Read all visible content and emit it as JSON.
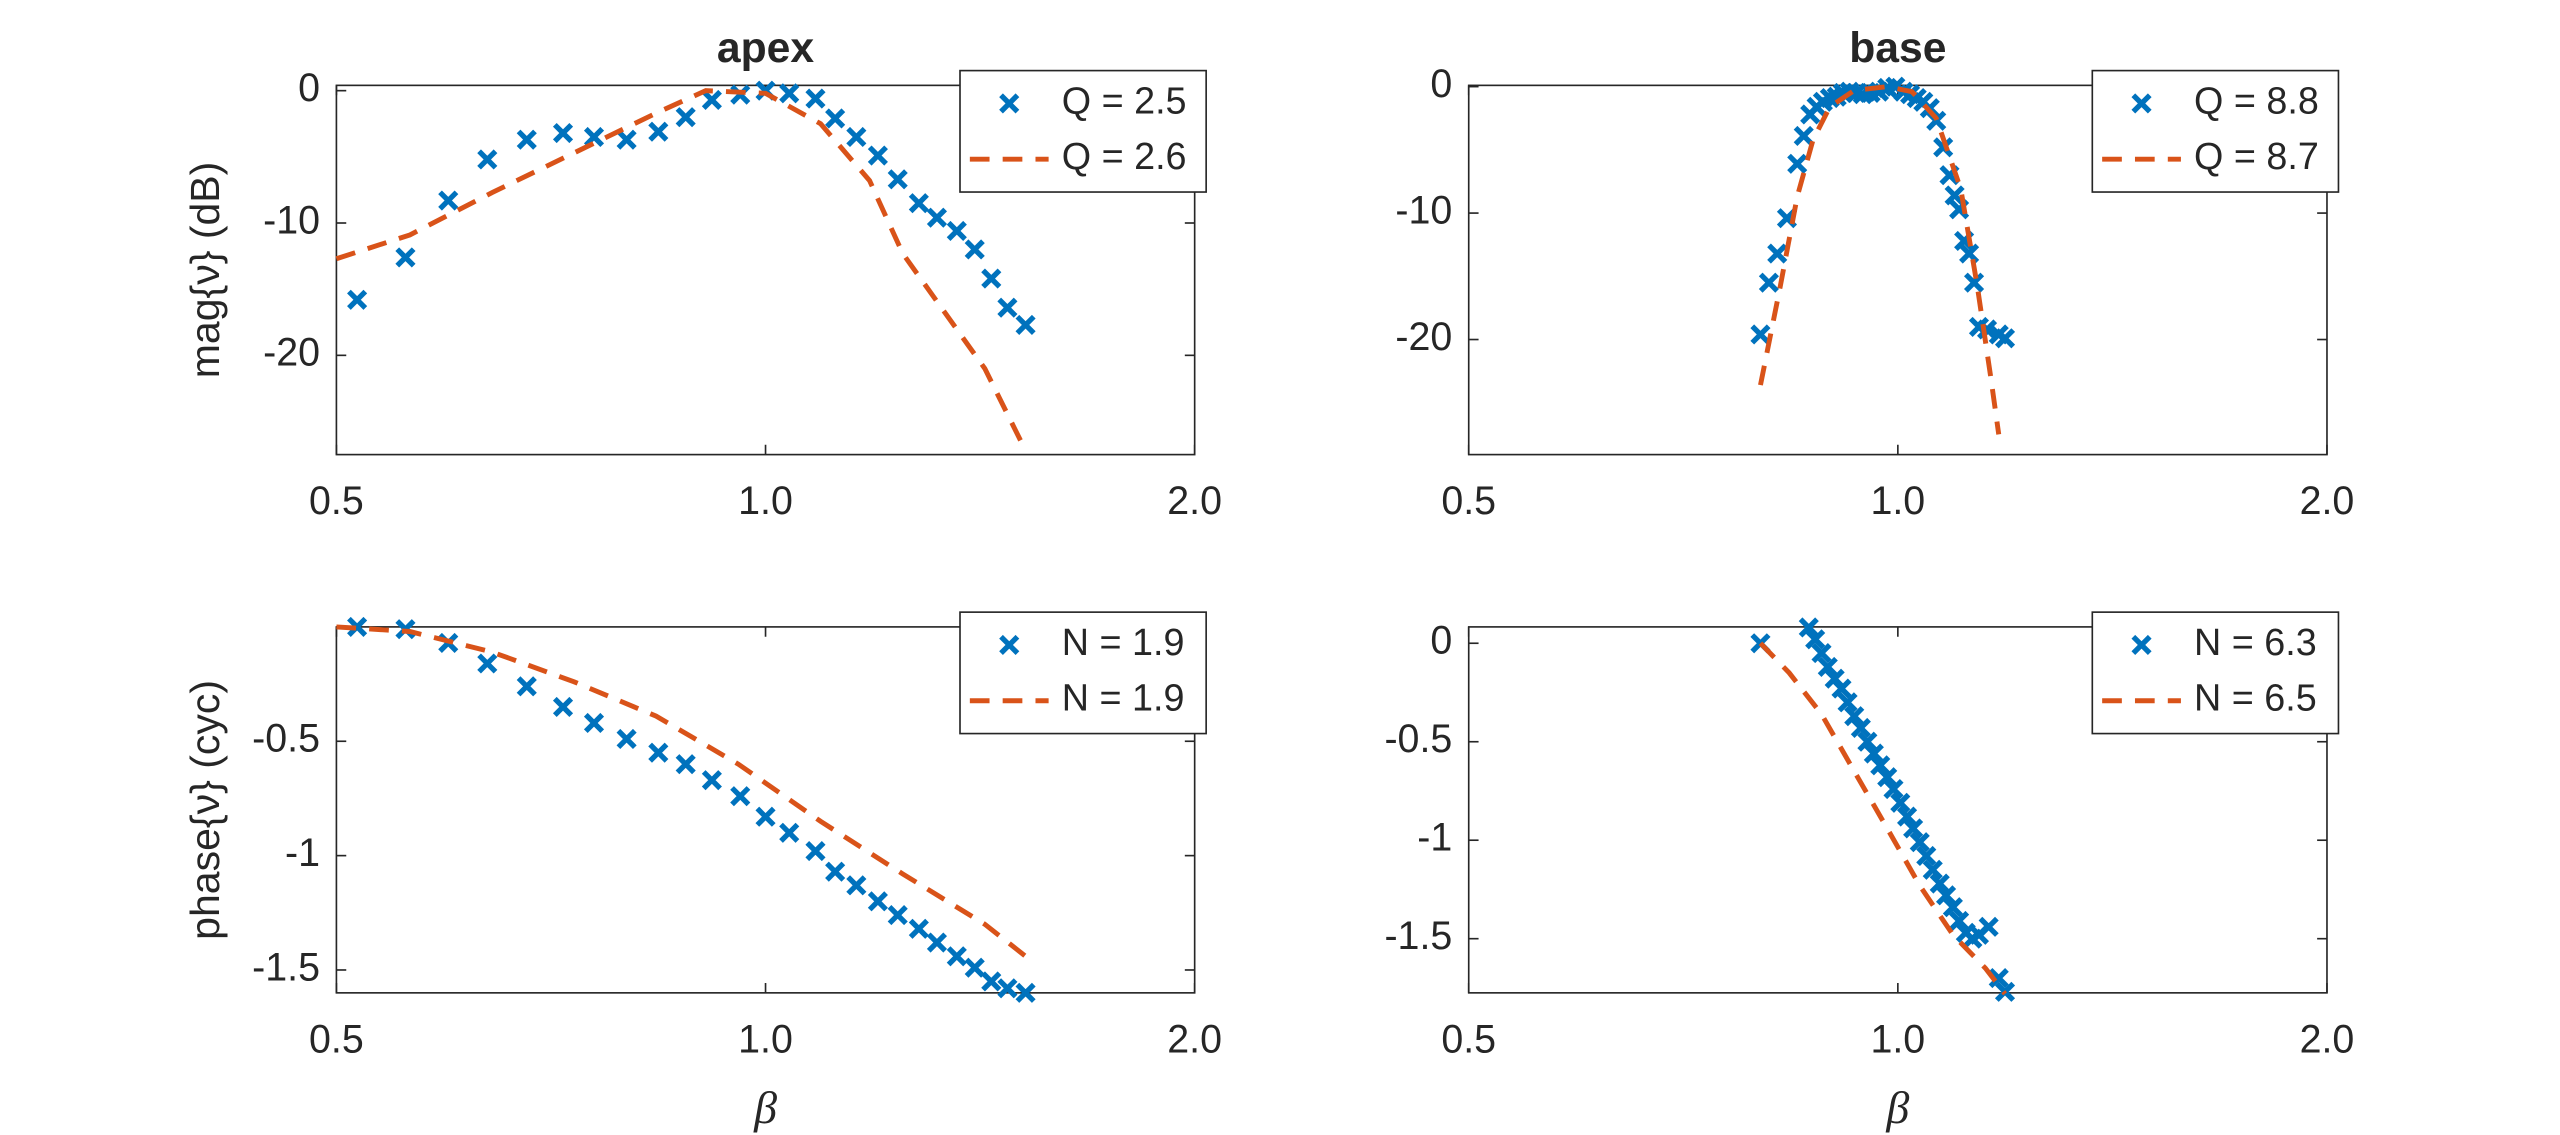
{
  "chart_data": [
    {
      "type": "line",
      "title": "apex",
      "ylabel": "mag{ν} (dB)",
      "xscale": "log",
      "legend": "northeast",
      "xlim": [
        0.5,
        2
      ],
      "xticks": [
        0.5,
        {
          "value": 1,
          "label": "1.0"
        },
        {
          "value": 2,
          "label": "2.0"
        }
      ],
      "ylim": [
        -27.5,
        0.4
      ],
      "yticks": [
        -20,
        -10,
        0
      ],
      "series": [
        {
          "name": "Q = 2.5",
          "color": "#0072BD",
          "marker": "x",
          "x": [
            0.517,
            0.559,
            0.599,
            0.638,
            0.68,
            0.721,
            0.758,
            0.799,
            0.841,
            0.879,
            0.917,
            0.96,
            1.0,
            1.039,
            1.084,
            1.119,
            1.158,
            1.199,
            1.238,
            1.281,
            1.319,
            1.362,
            1.402,
            1.44,
            1.478,
            1.522
          ],
          "values": [
            -15.8,
            -12.6,
            -8.3,
            -5.2,
            -3.7,
            -3.2,
            -3.5,
            -3.7,
            -3.1,
            -2.0,
            -0.7,
            -0.3,
            0,
            -0.2,
            -0.6,
            -2.1,
            -3.5,
            -4.9,
            -6.7,
            -8.5,
            -9.6,
            -10.6,
            -12.0,
            -14.2,
            -16.4,
            -17.7
          ]
        },
        {
          "name": "Q = 2.6",
          "color": "#D95319",
          "linestyle": "--",
          "x": [
            0.5,
            0.563,
            0.643,
            0.734,
            0.838,
            0.908,
            1.0,
            1.093,
            1.183,
            1.248,
            1.425,
            1.522
          ],
          "values": [
            -12.7,
            -10.9,
            -7.7,
            -4.7,
            -1.7,
            0,
            -0.2,
            -2.5,
            -6.8,
            -12.3,
            -21.0,
            -27.2
          ]
        }
      ]
    },
    {
      "type": "line",
      "title": "base",
      "xscale": "log",
      "legend": "northeast",
      "xlim": [
        0.5,
        2
      ],
      "xticks": [
        0.5,
        {
          "value": 1,
          "label": "1.0"
        },
        {
          "value": 2,
          "label": "2.0"
        }
      ],
      "ylim": [
        -29.1,
        0.1
      ],
      "yticks": [
        -20,
        -10,
        0
      ],
      "series": [
        {
          "name": "Q = 8.8",
          "color": "#0072BD",
          "marker": "x",
          "x": [
            0.801,
            0.812,
            0.823,
            0.836,
            0.85,
            0.859,
            0.868,
            0.877,
            0.886,
            0.896,
            0.906,
            0.915,
            0.925,
            0.935,
            0.945,
            0.957,
            0.97,
            0.983,
            0.996,
            1.009,
            1.02,
            1.031,
            1.042,
            1.053,
            1.064,
            1.076,
            1.087,
            1.096,
            1.104,
            1.113,
            1.122,
            1.131,
            1.14,
            1.155,
            1.177,
            1.189
          ],
          "values": [
            -19.6,
            -15.5,
            -13.2,
            -10.4,
            -6.1,
            -3.9,
            -2.2,
            -1.6,
            -1.2,
            -0.9,
            -0.8,
            -0.5,
            -0.4,
            -0.5,
            -0.6,
            -0.5,
            -0.4,
            -0.1,
            0,
            -0.4,
            -0.6,
            -0.9,
            -1.2,
            -1.7,
            -2.7,
            -4.8,
            -7.0,
            -8.6,
            -9.7,
            -12.2,
            -13.2,
            -15.5,
            -19.0,
            -19.2,
            -19.6,
            -19.9
          ]
        },
        {
          "name": "Q = 8.7",
          "color": "#D95319",
          "linestyle": "--",
          "x": [
            0.801,
            0.827,
            0.85,
            0.872,
            0.896,
            0.932,
            0.983,
            1.023,
            1.064,
            1.107,
            1.137,
            1.162,
            1.177
          ],
          "values": [
            -23.6,
            -15.8,
            -8.7,
            -4.2,
            -1.6,
            -0.3,
            0,
            -0.4,
            -2.5,
            -8.1,
            -15.8,
            -23.0,
            -27.5
          ]
        }
      ]
    },
    {
      "type": "line",
      "ylabel": "phase{ν}  (cyc)",
      "xlabel": "β",
      "xscale": "log",
      "legend": "northeast",
      "xlim": [
        0.5,
        2
      ],
      "xticks": [
        0.5,
        {
          "value": 1,
          "label": "1.0"
        },
        {
          "value": 2,
          "label": "2.0"
        }
      ],
      "ylim": [
        -1.6,
        0
      ],
      "yticks": [
        -1.5,
        -1,
        -0.5
      ],
      "series": [
        {
          "name": "N = 1.9",
          "color": "#0072BD",
          "marker": "x",
          "x": [
            0.517,
            0.559,
            0.599,
            0.638,
            0.68,
            0.721,
            0.758,
            0.799,
            0.841,
            0.879,
            0.917,
            0.96,
            1.0,
            1.039,
            1.084,
            1.119,
            1.158,
            1.199,
            1.238,
            1.281,
            1.319,
            1.362,
            1.402,
            1.44,
            1.478,
            1.522
          ],
          "values": [
            0,
            -0.01,
            -0.07,
            -0.16,
            -0.26,
            -0.35,
            -0.42,
            -0.49,
            -0.55,
            -0.6,
            -0.67,
            -0.74,
            -0.83,
            -0.9,
            -0.98,
            -1.07,
            -1.13,
            -1.2,
            -1.26,
            -1.32,
            -1.38,
            -1.44,
            -1.49,
            -1.55,
            -1.58,
            -1.6
          ]
        },
        {
          "name": "N = 1.9",
          "color": "#D95319",
          "linestyle": "--",
          "x": [
            0.5,
            0.563,
            0.643,
            0.734,
            0.838,
            0.957,
            1.093,
            1.248,
            1.425,
            1.522
          ],
          "values": [
            0,
            -0.02,
            -0.11,
            -0.24,
            -0.39,
            -0.6,
            -0.85,
            -1.08,
            -1.3,
            -1.44
          ]
        }
      ]
    },
    {
      "type": "line",
      "xlabel": "β",
      "xscale": "log",
      "legend": "northeast",
      "xlim": [
        0.5,
        2
      ],
      "xticks": [
        0.5,
        {
          "value": 1,
          "label": "1.0"
        },
        {
          "value": 2,
          "label": "2.0"
        }
      ],
      "ylim": [
        -1.775,
        0.083
      ],
      "yticks": [
        -1.5,
        -1,
        -0.5,
        0
      ],
      "series": [
        {
          "name": "N = 6.3",
          "color": "#0072BD",
          "marker": "x",
          "x": [
            0.801,
            0.866,
            0.875,
            0.884,
            0.893,
            0.903,
            0.913,
            0.922,
            0.932,
            0.942,
            0.952,
            0.962,
            0.972,
            0.983,
            0.993,
            1.004,
            1.015,
            1.025,
            1.036,
            1.047,
            1.058,
            1.07,
            1.081,
            1.093,
            1.104,
            1.116,
            1.128,
            1.14,
            1.158,
            1.177,
            1.189
          ],
          "values": [
            0,
            0.08,
            0.02,
            -0.05,
            -0.12,
            -0.18,
            -0.23,
            -0.3,
            -0.37,
            -0.43,
            -0.5,
            -0.56,
            -0.62,
            -0.68,
            -0.74,
            -0.81,
            -0.88,
            -0.94,
            -1.01,
            -1.08,
            -1.15,
            -1.22,
            -1.28,
            -1.34,
            -1.41,
            -1.47,
            -1.5,
            -1.48,
            -1.44,
            -1.7,
            -1.77
          ]
        },
        {
          "name": "N = 6.5",
          "color": "#D95319",
          "linestyle": "--",
          "x": [
            0.801,
            0.839,
            0.884,
            0.932,
            0.983,
            1.036,
            1.093,
            1.152,
            1.189
          ],
          "values": [
            0,
            -0.15,
            -0.36,
            -0.65,
            -0.94,
            -1.23,
            -1.48,
            -1.65,
            -1.78
          ]
        }
      ]
    }
  ]
}
